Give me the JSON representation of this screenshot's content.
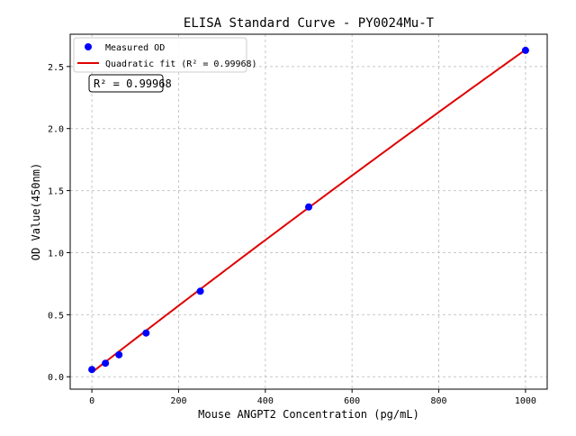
{
  "chart_data": {
    "type": "scatter",
    "title": "ELISA Standard Curve - PY0024Mu-T",
    "xlabel": "Mouse ANGPT2 Concentration (pg/mL)",
    "ylabel": "OD Value(450nm)",
    "xlim": [
      -50,
      1050
    ],
    "ylim": [
      -0.1,
      2.76
    ],
    "xticks": [
      0,
      200,
      400,
      600,
      800,
      1000
    ],
    "xtick_labels": [
      "0",
      "200",
      "400",
      "600",
      "800",
      "1000"
    ],
    "yticks": [
      0,
      0.5,
      1,
      1.5,
      2,
      2.5
    ],
    "ytick_labels": [
      "0.0",
      "0.5",
      "1.0",
      "1.5",
      "2.0",
      "2.5"
    ],
    "grid": true,
    "legend_position": "top-left",
    "series": [
      {
        "name": "Measured OD",
        "kind": "scatter",
        "color": "#0000ff",
        "x": [
          0,
          31.25,
          62.5,
          125,
          250,
          500,
          1000
        ],
        "y": [
          0.058,
          0.109,
          0.177,
          0.352,
          0.689,
          1.368,
          2.63
        ]
      },
      {
        "name": "Quadratic fit (R² = 0.99968)",
        "kind": "line",
        "color": "#e00000",
        "x_range": [
          0,
          1000
        ],
        "coefficients": {
          "a": 0.035,
          "b": 0.00271,
          "c": -1.1e-07
        }
      }
    ],
    "annotation": "R² = 0.99968"
  }
}
